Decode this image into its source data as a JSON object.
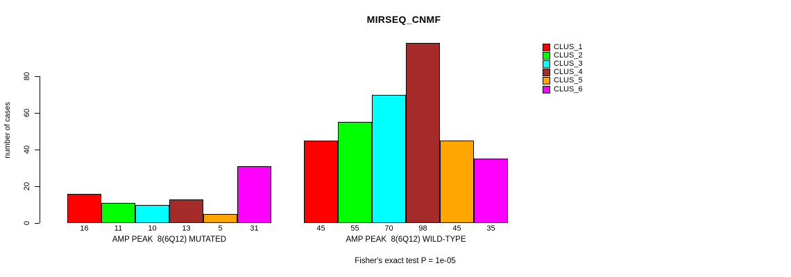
{
  "chart_data": {
    "type": "bar",
    "title": "MIRSEQ_CNMF",
    "ylabel": "number of cases",
    "ylim": [
      0,
      80
    ],
    "yticks": [
      0,
      20,
      40,
      60,
      80
    ],
    "grid": false,
    "legend_position": "right",
    "footnote": "Fisher's exact test P = 1e-05",
    "series_colors": [
      "#FF0000",
      "#00FF00",
      "#00FFFF",
      "#A52A2A",
      "#FFA500",
      "#FF00FF"
    ],
    "legend": [
      {
        "label": "CLUS_1",
        "color": "#FF0000"
      },
      {
        "label": "CLUS_2",
        "color": "#00FF00"
      },
      {
        "label": "CLUS_3",
        "color": "#00FFFF"
      },
      {
        "label": "CLUS_4",
        "color": "#A52A2A"
      },
      {
        "label": "CLUS_5",
        "color": "#FFA500"
      },
      {
        "label": "CLUS_6",
        "color": "#FF00FF"
      }
    ],
    "groups": [
      {
        "xlabel": "AMP PEAK  8(6Q12) MUTATED",
        "values": [
          16,
          11,
          10,
          13,
          5,
          31
        ]
      },
      {
        "xlabel": "AMP PEAK  8(6Q12) WILD-TYPE",
        "values": [
          45,
          55,
          70,
          98,
          45,
          35
        ]
      }
    ]
  },
  "colors": {
    "background": "#FFFFFF",
    "text": "#000000",
    "axis": "#000000"
  }
}
